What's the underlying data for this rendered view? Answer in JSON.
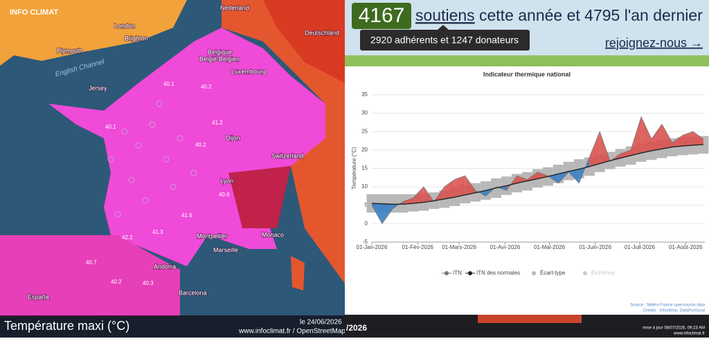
{
  "map": {
    "logo": "INFO CLIMAT",
    "title": "Température maxi (°C)",
    "date": "le 24/06/2026",
    "credit": "www.infoclimat.fr / OpenStreetMap",
    "places": [
      "Nederland",
      "London",
      "Brighton",
      "Plymouth",
      "English Channel",
      "Belgique",
      "België-Belgien",
      "Luxembourg",
      "Deutschland",
      "Jersey",
      "Dijon",
      "Lyon",
      "Switzerland",
      "Montpellier",
      "Marseille",
      "Monaco",
      "Andorra",
      "España",
      "Barcelona"
    ],
    "readings": [
      40.1,
      40.1,
      40.2,
      41.2,
      40.2,
      40.6,
      41.6,
      42.2,
      40.7,
      40.3,
      40.2,
      41.3
    ]
  },
  "banner": {
    "count": "4167",
    "link": "soutiens",
    "text": "cette année et 4795 l'an dernier",
    "tooltip": "2920 adhérents et 1247 donateurs",
    "cta": "rejoignez-nous →"
  },
  "chart": {
    "type": "line",
    "title": "Indicateur thermique national",
    "y_label": "Température (°C)",
    "x": [
      "2026-01-01",
      "2026-01-08",
      "2026-01-15",
      "2026-01-22",
      "2026-01-29",
      "2026-02-05",
      "2026-02-12",
      "2026-02-19",
      "2026-02-26",
      "2026-03-05",
      "2026-03-12",
      "2026-03-19",
      "2026-03-26",
      "2026-04-02",
      "2026-04-09",
      "2026-04-16",
      "2026-04-23",
      "2026-04-30",
      "2026-05-07",
      "2026-05-14",
      "2026-05-21",
      "2026-05-28",
      "2026-06-04",
      "2026-06-11",
      "2026-06-18",
      "2026-06-25",
      "2026-07-02",
      "2026-07-09",
      "2026-07-16",
      "2026-07-23",
      "2026-07-30",
      "2026-08-06",
      "2026-08-13"
    ],
    "series": [
      {
        "name": "ITN",
        "color": "#777777",
        "values": [
          5,
          0,
          4,
          6,
          7,
          10,
          6,
          10,
          12,
          13,
          9,
          7.5,
          10,
          9,
          13,
          12,
          14,
          13,
          11,
          14,
          11,
          18,
          25,
          17,
          19,
          20,
          29,
          23,
          27,
          22,
          24,
          25,
          23
        ]
      },
      {
        "name": "ITN des normales",
        "color": "#222222",
        "values": [
          5.5,
          5.4,
          5.3,
          5.3,
          5.5,
          5.8,
          6.2,
          6.7,
          7.2,
          7.8,
          8.4,
          9.0,
          9.7,
          10.3,
          11,
          11.6,
          12.2,
          12.8,
          13.5,
          14.2,
          14.8,
          15.5,
          16.3,
          17.1,
          17.8,
          18.5,
          19.2,
          19.8,
          20.3,
          20.8,
          21.1,
          21.3,
          21.5
        ]
      },
      {
        "name": "Écart-type",
        "color": "#b8b8b8",
        "low": [
          3,
          3,
          3,
          3,
          3.3,
          3.5,
          4,
          4.3,
          4.8,
          5.5,
          6,
          6.5,
          7,
          7.8,
          8.5,
          9,
          9.8,
          10.3,
          11,
          11.8,
          12.3,
          13,
          14,
          14.8,
          15.5,
          16,
          16.8,
          17.3,
          17.8,
          18.3,
          18.6,
          18.8,
          19
        ],
        "high": [
          8,
          8,
          8,
          8,
          8,
          8.2,
          8.5,
          9,
          9.8,
          10.5,
          11,
          11.5,
          12.3,
          12.8,
          13.5,
          14,
          14.8,
          15.3,
          16,
          16.8,
          17.5,
          18,
          18.8,
          19.5,
          20.3,
          21,
          21.8,
          22.3,
          22.8,
          23.2,
          23.5,
          23.7,
          23.8
        ]
      },
      {
        "name": "Extrêmes",
        "color": "#cccccc",
        "hidden": true
      }
    ],
    "above_color": "#d9534f",
    "below_color": "#3a7fc4",
    "xlim": [
      "2026-01-01",
      "2026-08-14"
    ],
    "xticks": [
      {
        "value": "2026-01-01",
        "label": "01-Jan-2026"
      },
      {
        "value": "2026-02-01",
        "label": "01-Fév-2026"
      },
      {
        "value": "2026-03-01",
        "label": "01-Mars-2026"
      },
      {
        "value": "2026-04-01",
        "label": "01-Avr-2026"
      },
      {
        "value": "2026-05-01",
        "label": "01-Mai-2026"
      },
      {
        "value": "2026-06-01",
        "label": "01-Juin-2026"
      },
      {
        "value": "2026-07-01",
        "label": "01-Juil-2026"
      },
      {
        "value": "2026-08-01",
        "label": "01-Août-2026"
      }
    ],
    "ylim": [
      -5,
      35
    ],
    "yticks": [
      -5,
      0,
      5,
      10,
      15,
      20,
      25,
      30,
      35
    ],
    "grid": true,
    "legend": "bottom",
    "source": "Source : Météo-France opensource data",
    "credits": "Crédits : Infoclimat, DataForGood"
  },
  "footer": {
    "partial_date": "/2026",
    "updated": "mise à jour 08/07/2026, 09:23 AM",
    "site": "www.infoclimat.fr"
  }
}
